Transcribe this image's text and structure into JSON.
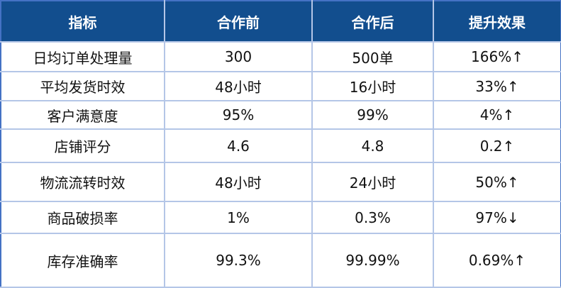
{
  "table": {
    "headers": [
      "指标",
      "合作前",
      "合作后",
      "提升效果"
    ],
    "rows": [
      [
        "日均订单处理量",
        "300",
        "500单",
        "166%↑"
      ],
      [
        "平均发货时效",
        "48小时",
        "16小时",
        "33%↑"
      ],
      [
        "客户满意度",
        "95%",
        "99%",
        "4%↑"
      ],
      [
        "店铺评分",
        "4.6",
        "4.8",
        "0.2↑"
      ],
      [
        "物流流转时效",
        "48小时",
        "24小时",
        "50%↑"
      ],
      [
        "商品破损率",
        "1%",
        "0.3%",
        "97%↓"
      ],
      [
        "库存准确率",
        "99.3%",
        "99.99%",
        "0.69%↑"
      ]
    ],
    "colors": {
      "header_bg": "#124e8e",
      "border": "#b4c6e7",
      "outer_border": "#4472c4"
    }
  }
}
